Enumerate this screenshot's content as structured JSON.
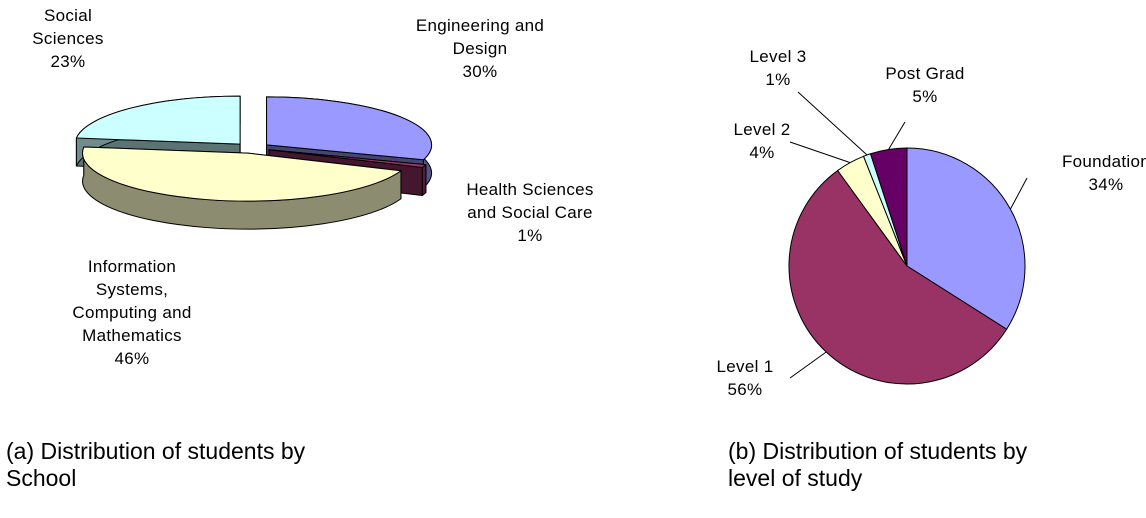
{
  "chart_data": [
    {
      "type": "pie3d",
      "caption": "(a) Distribution of students by School",
      "categories": [
        "Engineering and Design",
        "Health Sciences and Social Care",
        "Information Systems, Computing and Mathematics",
        "Social Sciences"
      ],
      "values": [
        30,
        1,
        46,
        23
      ],
      "value_labels": [
        "30%",
        "1%",
        "46%",
        "23%"
      ],
      "colors": [
        "#9999ff",
        "#993366",
        "#ffffcc",
        "#ccffff"
      ]
    },
    {
      "type": "pie",
      "caption": "(b) Distribution of students by level of study",
      "categories": [
        "Foundation",
        "Level 1",
        "Level 2",
        "Level 3",
        "Post Grad"
      ],
      "values": [
        34,
        56,
        4,
        1,
        5
      ],
      "value_labels": [
        "34%",
        "56%",
        "4%",
        "1%",
        "5%"
      ],
      "colors": [
        "#9999ff",
        "#993366",
        "#ffffcc",
        "#ccffff",
        "#660066"
      ]
    }
  ]
}
